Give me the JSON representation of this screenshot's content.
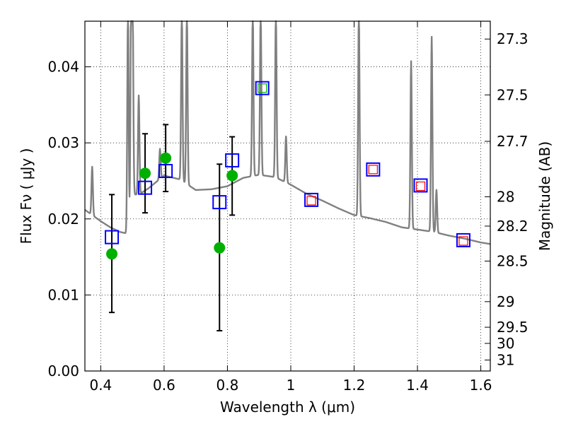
{
  "chart_data": {
    "type": "scatter",
    "xlabel": "Wavelength  λ (μm)",
    "ylabel": "Flux  Fν  ( μJy )",
    "y2label": "Magnitude (AB)",
    "xlim": [
      0.35,
      1.63
    ],
    "ylim": [
      0.0,
      0.046
    ],
    "x_ticks": [
      0.4,
      0.6,
      0.8,
      1.0,
      1.2,
      1.4,
      1.6
    ],
    "x_tick_labels": [
      "0.4",
      "0.6",
      "0.8",
      "1",
      "1.2",
      "1.4",
      "1.6"
    ],
    "y_ticks": [
      0.0,
      0.01,
      0.02,
      0.03,
      0.04
    ],
    "y_tick_labels": [
      "0.00",
      "0.01",
      "0.02",
      "0.03",
      "0.04"
    ],
    "mag_ticks": [
      27.3,
      27.5,
      27.7,
      28,
      28.2,
      28.5,
      29,
      29.5,
      30,
      31
    ],
    "mag_tick_labels": [
      "27.3",
      "27.5",
      "27.7",
      "28",
      "28.2",
      "28.5",
      "29",
      "29.5",
      "30",
      "31"
    ],
    "grid": true,
    "colors": {
      "sed": "#808080",
      "observed": "#00b000",
      "model_box": "#0000ff",
      "nir_box": "#ff0000",
      "errorbar": "#000000"
    },
    "sed_continuum": {
      "x": [
        0.35,
        0.37,
        0.4,
        0.43,
        0.46,
        0.48,
        0.49,
        0.5,
        0.52,
        0.55,
        0.6,
        0.65,
        0.7,
        0.75,
        0.8,
        0.85,
        0.9,
        0.95,
        1.0,
        1.05,
        1.1,
        1.15,
        1.2,
        1.25,
        1.3,
        1.35,
        1.4,
        1.45,
        1.5,
        1.55,
        1.6,
        1.63
      ],
      "y": [
        0.0212,
        0.0206,
        0.0197,
        0.0189,
        0.0183,
        0.0181,
        0.0182,
        0.0232,
        0.0232,
        0.024,
        0.0257,
        0.0252,
        0.0238,
        0.0239,
        0.0243,
        0.0254,
        0.0258,
        0.0255,
        0.0245,
        0.0233,
        0.0224,
        0.0214,
        0.0205,
        0.0201,
        0.0196,
        0.0189,
        0.0186,
        0.0183,
        0.0178,
        0.0174,
        0.0169,
        0.0167
      ]
    },
    "sed_emission_lines": [
      {
        "x": 0.373,
        "peak": 0.0265
      },
      {
        "x": 0.486,
        "peak": 0.046
      },
      {
        "x": 0.496,
        "peak": 0.046
      },
      {
        "x": 0.5007,
        "peak": 0.046
      },
      {
        "x": 0.52,
        "peak": 0.0355
      },
      {
        "x": 0.587,
        "peak": 0.029
      },
      {
        "x": 0.656,
        "peak": 0.046
      },
      {
        "x": 0.672,
        "peak": 0.046
      },
      {
        "x": 0.88,
        "peak": 0.046
      },
      {
        "x": 0.905,
        "peak": 0.046
      },
      {
        "x": 0.953,
        "peak": 0.046
      },
      {
        "x": 0.985,
        "peak": 0.0305
      },
      {
        "x": 1.215,
        "peak": 0.046
      },
      {
        "x": 1.38,
        "peak": 0.0395
      },
      {
        "x": 1.445,
        "peak": 0.0425
      },
      {
        "x": 1.46,
        "peak": 0.0235
      }
    ],
    "observed_points": [
      {
        "x": 0.435,
        "y": 0.0154,
        "yerr_low": 0.0077,
        "yerr_high": 0.0232
      },
      {
        "x": 0.54,
        "y": 0.026,
        "yerr_low": 0.0208,
        "yerr_high": 0.0312
      },
      {
        "x": 0.605,
        "y": 0.028,
        "yerr_low": 0.0236,
        "yerr_high": 0.0324
      },
      {
        "x": 0.775,
        "y": 0.0162,
        "yerr_low": 0.0053,
        "yerr_high": 0.0272
      },
      {
        "x": 0.815,
        "y": 0.0257,
        "yerr_low": 0.0205,
        "yerr_high": 0.0308
      },
      {
        "x": 0.91,
        "y": 0.0372
      },
      {
        "x": 1.065,
        "y": 0.0225
      },
      {
        "x": 1.26,
        "y": 0.0265
      },
      {
        "x": 1.41,
        "y": 0.0243
      },
      {
        "x": 1.545,
        "y": 0.0171
      }
    ],
    "model_boxes": [
      {
        "x": 0.435,
        "y": 0.0176
      },
      {
        "x": 0.54,
        "y": 0.0241
      },
      {
        "x": 0.605,
        "y": 0.0263
      },
      {
        "x": 0.775,
        "y": 0.0222
      },
      {
        "x": 0.815,
        "y": 0.0277
      },
      {
        "x": 0.91,
        "y": 0.0372
      },
      {
        "x": 1.065,
        "y": 0.0225
      },
      {
        "x": 1.26,
        "y": 0.0265
      },
      {
        "x": 1.41,
        "y": 0.0244
      },
      {
        "x": 1.545,
        "y": 0.0172
      }
    ],
    "nir_boxes": [
      {
        "x": 1.065,
        "y": 0.0224
      },
      {
        "x": 1.26,
        "y": 0.0265
      },
      {
        "x": 1.41,
        "y": 0.0243
      },
      {
        "x": 1.545,
        "y": 0.0171
      }
    ],
    "green_box": {
      "x": 0.91,
      "y": 0.0372
    }
  }
}
